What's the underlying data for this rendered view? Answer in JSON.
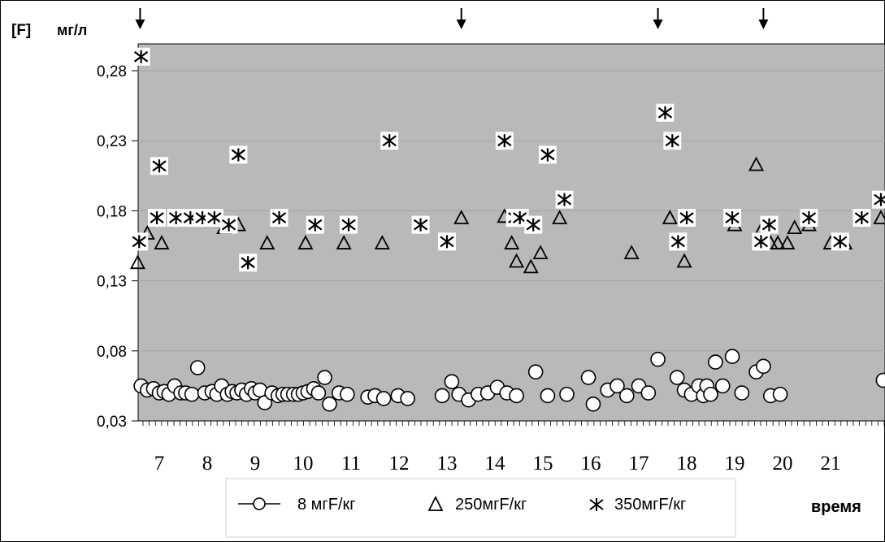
{
  "chart_data": {
    "type": "scatter",
    "unit_label": "[F]",
    "ylabel": "мг/л",
    "xlabel": "время",
    "ylim": [
      0.03,
      0.3
    ],
    "y_ticks": [
      "0,03",
      "0,08",
      "0,13",
      "0,18",
      "0,23",
      "0,28"
    ],
    "x_ticks": [
      "7",
      "8",
      "9",
      "10",
      "11",
      "12",
      "13",
      "14",
      "15",
      "16",
      "17",
      "18",
      "19",
      "20",
      "21"
    ],
    "xlim": [
      6.5,
      22.2
    ],
    "grid": "horizontal",
    "legend_position": "bottom",
    "arrow_markers_x": [
      6.6,
      13.3,
      17.4,
      19.6
    ],
    "series": [
      {
        "name": "8 мгF/кг",
        "marker": "circle",
        "points": [
          [
            6.62,
            0.055
          ],
          [
            6.75,
            0.052
          ],
          [
            6.88,
            0.053
          ],
          [
            7.0,
            0.05
          ],
          [
            7.1,
            0.051
          ],
          [
            7.2,
            0.049
          ],
          [
            7.32,
            0.055
          ],
          [
            7.45,
            0.05
          ],
          [
            7.55,
            0.05
          ],
          [
            7.68,
            0.049
          ],
          [
            7.8,
            0.068
          ],
          [
            7.95,
            0.05
          ],
          [
            8.1,
            0.051
          ],
          [
            8.2,
            0.049
          ],
          [
            8.3,
            0.055
          ],
          [
            8.42,
            0.049
          ],
          [
            8.52,
            0.051
          ],
          [
            8.62,
            0.05
          ],
          [
            8.72,
            0.052
          ],
          [
            8.82,
            0.049
          ],
          [
            8.92,
            0.053
          ],
          [
            9.0,
            0.05
          ],
          [
            9.1,
            0.052
          ],
          [
            9.2,
            0.043
          ],
          [
            9.35,
            0.05
          ],
          [
            9.48,
            0.048
          ],
          [
            9.58,
            0.049
          ],
          [
            9.68,
            0.049
          ],
          [
            9.8,
            0.049
          ],
          [
            9.9,
            0.049
          ],
          [
            10.0,
            0.05
          ],
          [
            10.1,
            0.051
          ],
          [
            10.22,
            0.053
          ],
          [
            10.32,
            0.05
          ],
          [
            10.45,
            0.061
          ],
          [
            10.55,
            0.042
          ],
          [
            10.75,
            0.05
          ],
          [
            10.92,
            0.049
          ],
          [
            11.35,
            0.047
          ],
          [
            11.5,
            0.048
          ],
          [
            11.68,
            0.046
          ],
          [
            11.98,
            0.048
          ],
          [
            12.18,
            0.046
          ],
          [
            12.9,
            0.048
          ],
          [
            13.1,
            0.058
          ],
          [
            13.25,
            0.049
          ],
          [
            13.45,
            0.045
          ],
          [
            13.65,
            0.049
          ],
          [
            13.85,
            0.05
          ],
          [
            14.05,
            0.054
          ],
          [
            14.25,
            0.05
          ],
          [
            14.45,
            0.048
          ],
          [
            14.85,
            0.065
          ],
          [
            15.1,
            0.048
          ],
          [
            15.5,
            0.049
          ],
          [
            15.95,
            0.061
          ],
          [
            16.05,
            0.042
          ],
          [
            16.35,
            0.052
          ],
          [
            16.55,
            0.055
          ],
          [
            16.75,
            0.048
          ],
          [
            17.0,
            0.055
          ],
          [
            17.2,
            0.05
          ],
          [
            17.4,
            0.074
          ],
          [
            17.8,
            0.061
          ],
          [
            17.95,
            0.052
          ],
          [
            18.1,
            0.049
          ],
          [
            18.25,
            0.055
          ],
          [
            18.35,
            0.048
          ],
          [
            18.42,
            0.055
          ],
          [
            18.5,
            0.049
          ],
          [
            18.6,
            0.072
          ],
          [
            18.75,
            0.055
          ],
          [
            18.95,
            0.076
          ],
          [
            19.15,
            0.05
          ],
          [
            19.45,
            0.065
          ],
          [
            19.6,
            0.069
          ],
          [
            19.75,
            0.048
          ],
          [
            19.95,
            0.049
          ],
          [
            22.1,
            0.059
          ]
        ]
      },
      {
        "name": "250мгF/кг",
        "marker": "triangle",
        "points": [
          [
            6.55,
            0.143
          ],
          [
            6.75,
            0.164
          ],
          [
            7.05,
            0.157
          ],
          [
            8.35,
            0.168
          ],
          [
            8.65,
            0.17
          ],
          [
            9.25,
            0.157
          ],
          [
            10.05,
            0.157
          ],
          [
            10.85,
            0.157
          ],
          [
            11.65,
            0.157
          ],
          [
            13.3,
            0.175
          ],
          [
            14.2,
            0.176
          ],
          [
            14.35,
            0.157
          ],
          [
            14.45,
            0.144
          ],
          [
            14.75,
            0.14
          ],
          [
            14.95,
            0.15
          ],
          [
            15.35,
            0.175
          ],
          [
            16.85,
            0.15
          ],
          [
            17.65,
            0.175
          ],
          [
            17.95,
            0.144
          ],
          [
            19.0,
            0.17
          ],
          [
            19.45,
            0.213
          ],
          [
            19.58,
            0.168
          ],
          [
            19.75,
            0.157
          ],
          [
            19.9,
            0.157
          ],
          [
            20.1,
            0.157
          ],
          [
            20.25,
            0.168
          ],
          [
            20.55,
            0.17
          ],
          [
            21.0,
            0.157
          ],
          [
            21.3,
            0.157
          ],
          [
            22.05,
            0.175
          ]
        ]
      },
      {
        "name": "350мгF/кг",
        "marker": "asterisk",
        "points": [
          [
            6.58,
            0.158
          ],
          [
            6.62,
            0.29
          ],
          [
            6.95,
            0.175
          ],
          [
            7.0,
            0.212
          ],
          [
            7.35,
            0.175
          ],
          [
            7.65,
            0.175
          ],
          [
            7.9,
            0.175
          ],
          [
            8.15,
            0.175
          ],
          [
            8.45,
            0.17
          ],
          [
            8.65,
            0.22
          ],
          [
            8.85,
            0.143
          ],
          [
            9.5,
            0.175
          ],
          [
            10.25,
            0.17
          ],
          [
            10.95,
            0.17
          ],
          [
            11.8,
            0.23
          ],
          [
            12.45,
            0.17
          ],
          [
            13.0,
            0.158
          ],
          [
            14.2,
            0.23
          ],
          [
            14.42,
            0.175
          ],
          [
            14.52,
            0.175
          ],
          [
            14.8,
            0.17
          ],
          [
            15.1,
            0.22
          ],
          [
            15.45,
            0.188
          ],
          [
            17.55,
            0.25
          ],
          [
            17.7,
            0.23
          ],
          [
            17.82,
            0.158
          ],
          [
            18.0,
            0.175
          ],
          [
            18.95,
            0.175
          ],
          [
            19.55,
            0.158
          ],
          [
            19.72,
            0.17
          ],
          [
            20.55,
            0.175
          ],
          [
            21.2,
            0.158
          ],
          [
            21.65,
            0.175
          ],
          [
            22.05,
            0.188
          ]
        ]
      }
    ]
  }
}
